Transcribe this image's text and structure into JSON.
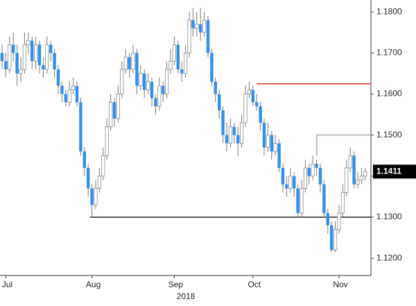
{
  "chart_data": {
    "type": "candlestick",
    "x_label": "2018",
    "categories": [
      null,
      "Jul",
      null,
      null,
      null,
      null,
      null,
      null,
      null,
      null,
      null,
      null,
      null,
      null,
      null,
      null,
      null,
      null,
      null,
      null,
      null,
      null,
      null,
      null,
      "Aug",
      null,
      null,
      null,
      null,
      null,
      null,
      null,
      null,
      null,
      null,
      null,
      null,
      null,
      null,
      null,
      null,
      null,
      null,
      null,
      null,
      null,
      "Sep",
      null,
      null,
      null,
      null,
      null,
      null,
      null,
      null,
      null,
      null,
      null,
      null,
      null,
      null,
      null,
      null,
      null,
      null,
      null,
      null,
      "Oct",
      null,
      null,
      null,
      null,
      null,
      null,
      null,
      null,
      null,
      null,
      null,
      null,
      null,
      null,
      null,
      null,
      null,
      null,
      null,
      null,
      null,
      null,
      "Nov",
      null,
      null,
      null,
      null,
      null,
      null,
      null
    ],
    "open": [
      1.17,
      1.168,
      1.166,
      1.172,
      1.17,
      1.165,
      1.166,
      1.172,
      1.173,
      1.168,
      1.172,
      1.167,
      1.166,
      1.172,
      1.17,
      1.166,
      1.162,
      1.16,
      1.158,
      1.161,
      1.162,
      1.158,
      1.146,
      1.142,
      1.137,
      1.133,
      1.137,
      1.14,
      1.145,
      1.152,
      1.158,
      1.154,
      1.16,
      1.166,
      1.169,
      1.166,
      1.17,
      1.162,
      1.165,
      1.161,
      1.163,
      1.159,
      1.157,
      1.162,
      1.16,
      1.166,
      1.168,
      1.172,
      1.166,
      1.165,
      1.17,
      1.178,
      1.176,
      1.177,
      1.175,
      1.178,
      1.17,
      1.163,
      1.16,
      1.156,
      1.15,
      1.148,
      1.152,
      1.15,
      1.148,
      1.153,
      1.16,
      1.161,
      1.158,
      1.157,
      1.153,
      1.147,
      1.15,
      1.146,
      1.148,
      1.142,
      1.138,
      1.137,
      1.14,
      1.137,
      1.131,
      1.137,
      1.142,
      1.14,
      1.143,
      1.142,
      1.138,
      1.131,
      1.128,
      1.122,
      1.127,
      1.131,
      1.136,
      1.142,
      1.145,
      1.138,
      1.139,
      1.14
    ],
    "high": [
      1.172,
      1.17,
      1.174,
      1.175,
      1.172,
      1.169,
      1.175,
      1.175,
      1.174,
      1.174,
      1.173,
      1.169,
      1.174,
      1.173,
      1.171,
      1.167,
      1.163,
      1.161,
      1.163,
      1.164,
      1.163,
      1.159,
      1.147,
      1.143,
      1.138,
      1.139,
      1.142,
      1.147,
      1.154,
      1.16,
      1.159,
      1.162,
      1.168,
      1.171,
      1.17,
      1.172,
      1.171,
      1.167,
      1.166,
      1.165,
      1.164,
      1.16,
      1.164,
      1.163,
      1.168,
      1.171,
      1.174,
      1.173,
      1.168,
      1.172,
      1.18,
      1.181,
      1.18,
      1.181,
      1.18,
      1.179,
      1.171,
      1.164,
      1.161,
      1.157,
      1.153,
      1.154,
      1.153,
      1.152,
      1.155,
      1.162,
      1.163,
      1.162,
      1.16,
      1.158,
      1.154,
      1.153,
      1.151,
      1.15,
      1.149,
      1.143,
      1.14,
      1.142,
      1.141,
      1.138,
      1.139,
      1.144,
      1.143,
      1.145,
      1.144,
      1.143,
      1.139,
      1.132,
      1.129,
      1.129,
      1.133,
      1.138,
      1.144,
      1.147,
      1.146,
      1.141,
      1.142,
      1.142
    ],
    "low": [
      1.166,
      1.164,
      1.165,
      1.168,
      1.162,
      1.163,
      1.165,
      1.17,
      1.166,
      1.166,
      1.165,
      1.164,
      1.165,
      1.168,
      1.164,
      1.16,
      1.158,
      1.157,
      1.157,
      1.16,
      1.157,
      1.145,
      1.14,
      1.135,
      1.13,
      1.132,
      1.136,
      1.139,
      1.144,
      1.151,
      1.152,
      1.153,
      1.159,
      1.165,
      1.164,
      1.165,
      1.16,
      1.161,
      1.159,
      1.16,
      1.157,
      1.155,
      1.156,
      1.158,
      1.159,
      1.165,
      1.167,
      1.165,
      1.163,
      1.164,
      1.169,
      1.174,
      1.174,
      1.173,
      1.174,
      1.169,
      1.162,
      1.158,
      1.154,
      1.148,
      1.146,
      1.147,
      1.148,
      1.145,
      1.147,
      1.152,
      1.159,
      1.157,
      1.156,
      1.151,
      1.145,
      1.146,
      1.144,
      1.145,
      1.141,
      1.136,
      1.135,
      1.136,
      1.135,
      1.13,
      1.13,
      1.136,
      1.138,
      1.139,
      1.14,
      1.136,
      1.13,
      1.126,
      1.1215,
      1.1215,
      1.126,
      1.13,
      1.135,
      1.141,
      1.137,
      1.137,
      1.138,
      1.139
    ],
    "close": [
      1.168,
      1.166,
      1.172,
      1.17,
      1.165,
      1.166,
      1.172,
      1.173,
      1.168,
      1.172,
      1.167,
      1.166,
      1.172,
      1.17,
      1.166,
      1.162,
      1.16,
      1.158,
      1.161,
      1.162,
      1.158,
      1.146,
      1.142,
      1.137,
      1.133,
      1.137,
      1.14,
      1.145,
      1.152,
      1.158,
      1.154,
      1.16,
      1.166,
      1.169,
      1.166,
      1.17,
      1.162,
      1.165,
      1.161,
      1.163,
      1.159,
      1.157,
      1.162,
      1.16,
      1.166,
      1.168,
      1.172,
      1.166,
      1.165,
      1.17,
      1.178,
      1.176,
      1.177,
      1.175,
      1.178,
      1.17,
      1.163,
      1.16,
      1.156,
      1.15,
      1.148,
      1.152,
      1.15,
      1.148,
      1.153,
      1.16,
      1.161,
      1.158,
      1.157,
      1.153,
      1.147,
      1.15,
      1.146,
      1.148,
      1.142,
      1.138,
      1.137,
      1.14,
      1.137,
      1.131,
      1.137,
      1.142,
      1.14,
      1.143,
      1.142,
      1.138,
      1.131,
      1.128,
      1.122,
      1.127,
      1.131,
      1.136,
      1.142,
      1.145,
      1.138,
      1.139,
      1.14,
      1.1411
    ],
    "up_color": "#ffffff",
    "down_color": "#2f8ef0",
    "levels": [
      {
        "value": 1.1625,
        "color": "#e8332a"
      },
      {
        "value": 1.15,
        "color": "#aaaaaa"
      },
      {
        "value": 1.13,
        "color": "#222222"
      }
    ],
    "last_price": 1.1411,
    "ylim": [
      1.1158,
      1.1829
    ],
    "yticks": [
      {
        "value": 1.12,
        "label": "1.1200"
      },
      {
        "value": 1.13,
        "label": "1.1300"
      },
      {
        "value": 1.14,
        "label": "1.1400"
      },
      {
        "value": 1.15,
        "label": "1.1500"
      },
      {
        "value": 1.16,
        "label": "1.1600"
      },
      {
        "value": 1.17,
        "label": "1.1700"
      },
      {
        "value": 1.18,
        "label": "1.1800"
      }
    ],
    "grid": false
  }
}
